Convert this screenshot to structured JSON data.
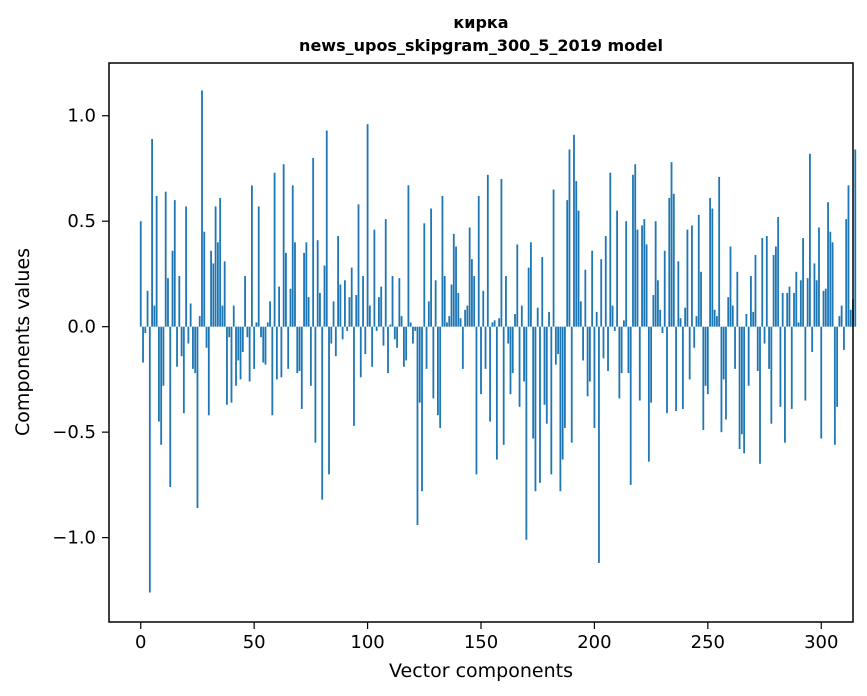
{
  "chart_data": {
    "type": "bar",
    "title_line1": "кирка",
    "title_line2": "news_upos_skipgram_300_5_2019 model",
    "xlabel": "Vector components",
    "ylabel": "Components values",
    "xlim": [
      -14,
      314
    ],
    "ylim": [
      -1.4,
      1.25
    ],
    "x_ticks": [
      {
        "value": 0,
        "label": "0"
      },
      {
        "value": 50,
        "label": "50"
      },
      {
        "value": 100,
        "label": "100"
      },
      {
        "value": 150,
        "label": "150"
      },
      {
        "value": 200,
        "label": "200"
      },
      {
        "value": 250,
        "label": "250"
      },
      {
        "value": 300,
        "label": "300"
      }
    ],
    "y_ticks": [
      {
        "value": 1.0,
        "label": "1.0"
      },
      {
        "value": 0.5,
        "label": "0.5"
      },
      {
        "value": 0.0,
        "label": "0.0"
      },
      {
        "value": -0.5,
        "label": "−0.5"
      },
      {
        "value": -1.0,
        "label": "−1.0"
      }
    ],
    "bar_color": "#1f77b4",
    "bar_width": 0.8,
    "grid": false,
    "legend": "none",
    "series": [
      {
        "name": "кирка",
        "values": [
          0.5,
          -0.17,
          -0.03,
          0.17,
          -1.26,
          0.89,
          0.1,
          0.62,
          -0.45,
          -0.56,
          -0.28,
          0.64,
          0.23,
          -0.76,
          0.36,
          0.6,
          -0.19,
          0.24,
          -0.14,
          -0.41,
          0.57,
          -0.08,
          0.11,
          -0.2,
          -0.22,
          -0.86,
          0.05,
          1.12,
          0.45,
          -0.1,
          -0.42,
          0.36,
          0.3,
          0.57,
          0.4,
          0.61,
          0.1,
          0.31,
          -0.37,
          -0.05,
          -0.36,
          0.1,
          -0.28,
          -0.16,
          -0.25,
          -0.12,
          0.24,
          -0.05,
          -0.26,
          0.67,
          -0.2,
          0.02,
          0.57,
          -0.05,
          -0.17,
          -0.18,
          0.02,
          0.12,
          -0.42,
          0.73,
          -0.25,
          0.19,
          -0.24,
          0.77,
          0.35,
          -0.2,
          0.18,
          0.67,
          0.4,
          -0.22,
          -0.21,
          -0.39,
          0.35,
          0.4,
          0.14,
          -0.28,
          0.8,
          -0.55,
          0.41,
          0.16,
          -0.82,
          0.29,
          0.93,
          -0.7,
          -0.08,
          0.12,
          -0.14,
          0.43,
          0.2,
          -0.06,
          0.22,
          -0.02,
          0.14,
          0.28,
          -0.47,
          0.15,
          0.58,
          -0.24,
          0.24,
          -0.13,
          0.96,
          0.1,
          -0.19,
          0.46,
          -0.02,
          0.14,
          0.19,
          -0.09,
          0.51,
          -0.22,
          0.01,
          0.24,
          -0.06,
          -0.1,
          0.23,
          0.05,
          -0.19,
          -0.16,
          0.67,
          0.02,
          -0.08,
          -0.02,
          -0.94,
          -0.36,
          -0.78,
          0.49,
          -0.2,
          0.12,
          0.56,
          -0.34,
          0.22,
          -0.42,
          -0.48,
          0.62,
          0.24,
          0.02,
          0.05,
          0.2,
          0.44,
          0.38,
          0.16,
          0.04,
          -0.2,
          0.08,
          0.1,
          0.47,
          0.32,
          0.24,
          -0.7,
          0.62,
          -0.32,
          0.17,
          -0.2,
          0.72,
          -0.45,
          0.02,
          0.03,
          -0.63,
          0.04,
          0.7,
          -0.56,
          0.24,
          -0.08,
          -0.32,
          -0.22,
          0.06,
          0.39,
          -0.38,
          0.1,
          -0.26,
          -1.01,
          0.28,
          0.4,
          -0.53,
          -0.78,
          0.09,
          -0.74,
          0.33,
          -0.37,
          -0.46,
          0.07,
          -0.7,
          0.65,
          -0.18,
          -0.13,
          -0.78,
          -0.63,
          -0.48,
          0.6,
          0.84,
          -0.55,
          0.91,
          0.69,
          0.55,
          0.12,
          -0.16,
          0.27,
          -0.33,
          -0.26,
          0.36,
          -0.48,
          0.07,
          -1.12,
          0.32,
          -0.15,
          0.43,
          -0.21,
          0.73,
          0.1,
          -0.02,
          0.55,
          -0.34,
          -0.22,
          0.03,
          0.5,
          -0.22,
          -0.75,
          0.72,
          0.77,
          0.46,
          -0.35,
          0.48,
          0.51,
          0.39,
          -0.64,
          -0.36,
          0.15,
          0.5,
          0.22,
          0.08,
          -0.03,
          0.36,
          -0.41,
          0.61,
          0.78,
          0.63,
          -0.4,
          0.31,
          0.04,
          -0.39,
          0.09,
          0.46,
          -0.25,
          0.48,
          -0.1,
          0.05,
          0.53,
          0.26,
          -0.49,
          -0.28,
          -0.32,
          0.61,
          0.56,
          0.08,
          0.05,
          0.71,
          -0.5,
          -0.25,
          -0.44,
          0.14,
          0.38,
          0.1,
          -0.2,
          0.26,
          -0.58,
          -0.51,
          -0.6,
          0.06,
          -0.28,
          0.24,
          0.07,
          0.34,
          -0.21,
          -0.65,
          0.42,
          -0.08,
          0.43,
          -0.2,
          -0.46,
          0.34,
          0.38,
          0.52,
          -0.38,
          0.16,
          -0.55,
          0.16,
          0.19,
          -0.39,
          0.16,
          0.26,
          0.02,
          0.22,
          0.42,
          -0.35,
          0.23,
          0.82,
          -0.12,
          0.3,
          0.22,
          0.47,
          -0.53,
          0.17,
          0.18,
          0.59,
          0.45,
          0.4,
          -0.56,
          -0.38,
          0.05,
          0.1,
          -0.11,
          0.51,
          0.67,
          0.08,
          0.13,
          0.84
        ]
      }
    ]
  }
}
